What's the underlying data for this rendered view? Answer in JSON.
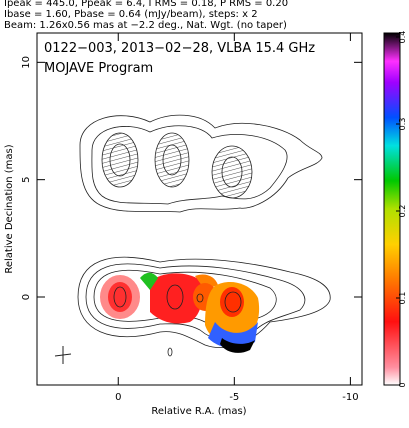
{
  "chart_data": {
    "type": "image",
    "header": [
      "Ipeak = 445.0, Ppeak = 6.4, I RMS = 0.18, P RMS = 0.20",
      "Ibase = 1.60, Pbase = 0.64 (mJy/beam), steps: x 2",
      "Beam: 1.26x0.56 mas at −2.2 deg., Nat. Wgt. (no taper)"
    ],
    "title": "0122−003, 2013−02−28, VLBA 15.4 GHz",
    "subtitle": "MOJAVE Program",
    "xlabel": "Relative R.A. (mas)",
    "ylabel": "Relative Decination (mas)",
    "xlim": [
      3.5,
      -10.5
    ],
    "xticks": [
      0,
      -5,
      -10
    ],
    "ylim": [
      -3.75,
      11.25
    ],
    "yticks": [
      0,
      5,
      10
    ],
    "clim": [
      0,
      0.4
    ],
    "cticks": [
      0,
      0.1,
      0.2,
      0.3,
      0.4
    ]
  }
}
